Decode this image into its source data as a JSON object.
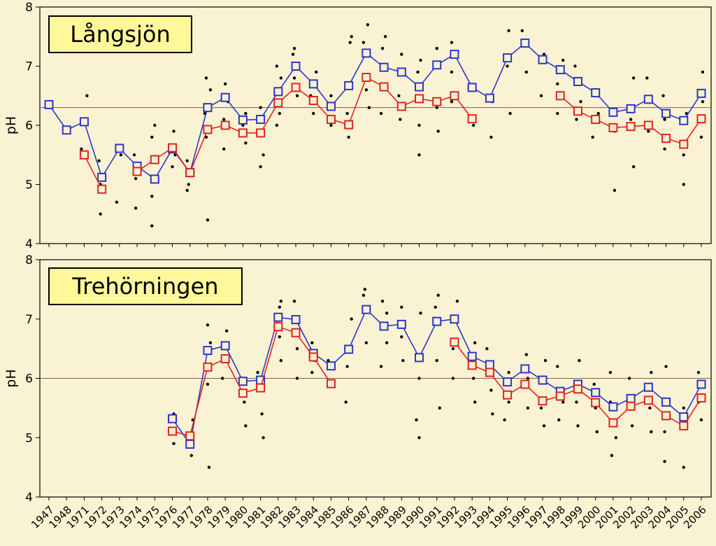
{
  "chart_data": [
    {
      "type": "scatter",
      "title": "Långsjön",
      "ylabel": "pH",
      "ylim": [
        4,
        8
      ],
      "yticks": [
        4,
        5,
        6,
        7,
        8
      ],
      "reference_line": 6.3,
      "categories": [
        "1947",
        "1948",
        "1971",
        "1972",
        "1973",
        "1974",
        "1975",
        "1976",
        "1977",
        "1978",
        "1979",
        "1980",
        "1981",
        "1982",
        "1983",
        "1984",
        "1985",
        "1986",
        "1987",
        "1988",
        "1989",
        "1990",
        "1991",
        "1992",
        "1993",
        "1994",
        "1995",
        "1996",
        "1997",
        "1998",
        "1999",
        "2000",
        "2001",
        "2002",
        "2003",
        "2004",
        "2005",
        "2006"
      ],
      "series": [
        {
          "values": [
            6.35,
            5.92,
            6.06,
            5.12,
            5.61,
            5.31,
            5.09,
            5.6,
            5.2,
            6.3,
            6.47,
            6.09,
            6.1,
            6.57,
            7.0,
            6.7,
            6.32,
            6.67,
            7.22,
            6.98,
            6.9,
            6.65,
            7.02,
            7.2,
            6.64,
            6.46,
            7.14,
            7.39,
            7.11,
            6.94,
            6.74,
            6.55,
            6.22,
            6.28,
            6.44,
            6.2,
            6.08,
            6.54
          ],
          "color": "#2b36c9"
        },
        {
          "values": [
            null,
            null,
            5.5,
            4.92,
            null,
            5.22,
            5.42,
            5.62,
            5.2,
            5.93,
            6.0,
            5.87,
            5.87,
            6.38,
            6.64,
            6.42,
            6.1,
            6.01,
            6.81,
            6.65,
            6.32,
            6.45,
            6.4,
            6.5,
            6.11,
            null,
            null,
            null,
            null,
            6.5,
            6.24,
            6.1,
            5.96,
            5.98,
            6.0,
            5.78,
            5.68,
            6.11
          ],
          "color": "#e0231f"
        }
      ],
      "scatter_points": [
        [
          2,
          6.5
        ],
        [
          2,
          5.6
        ],
        [
          3,
          5.0
        ],
        [
          3,
          4.5
        ],
        [
          3,
          5.4
        ],
        [
          4,
          4.7
        ],
        [
          4,
          5.5
        ],
        [
          5,
          4.6
        ],
        [
          5,
          5.1
        ],
        [
          5,
          5.5
        ],
        [
          6,
          4.3
        ],
        [
          6,
          4.8
        ],
        [
          6,
          5.8
        ],
        [
          6,
          6.0
        ],
        [
          7,
          5.3
        ],
        [
          7,
          5.5
        ],
        [
          7,
          5.9
        ],
        [
          8,
          4.9
        ],
        [
          8,
          5.0
        ],
        [
          8,
          5.4
        ],
        [
          9,
          4.4
        ],
        [
          9,
          5.8
        ],
        [
          9,
          6.2
        ],
        [
          9,
          6.6
        ],
        [
          9,
          6.8
        ],
        [
          10,
          5.6
        ],
        [
          10,
          6.1
        ],
        [
          10,
          6.4
        ],
        [
          10,
          6.7
        ],
        [
          11,
          5.7
        ],
        [
          11,
          6.0
        ],
        [
          11,
          6.2
        ],
        [
          12,
          5.3
        ],
        [
          12,
          5.5
        ],
        [
          12,
          6.3
        ],
        [
          13,
          6.0
        ],
        [
          13,
          6.2
        ],
        [
          13,
          6.8
        ],
        [
          13,
          7.0
        ],
        [
          14,
          6.5
        ],
        [
          14,
          6.8
        ],
        [
          14,
          7.2
        ],
        [
          14,
          7.3
        ],
        [
          15,
          6.2
        ],
        [
          15,
          6.5
        ],
        [
          15,
          6.9
        ],
        [
          16,
          6.0
        ],
        [
          16,
          6.5
        ],
        [
          17,
          5.8
        ],
        [
          17,
          6.2
        ],
        [
          17,
          7.4
        ],
        [
          17,
          7.5
        ],
        [
          18,
          6.3
        ],
        [
          18,
          6.6
        ],
        [
          18,
          7.4
        ],
        [
          18,
          7.7
        ],
        [
          19,
          6.2
        ],
        [
          19,
          6.7
        ],
        [
          19,
          7.3
        ],
        [
          19,
          7.5
        ],
        [
          20,
          6.1
        ],
        [
          20,
          6.5
        ],
        [
          20,
          7.2
        ],
        [
          21,
          5.5
        ],
        [
          21,
          6.0
        ],
        [
          21,
          6.9
        ],
        [
          21,
          7.1
        ],
        [
          22,
          5.9
        ],
        [
          22,
          6.3
        ],
        [
          22,
          7.3
        ],
        [
          23,
          6.4
        ],
        [
          23,
          6.9
        ],
        [
          23,
          7.4
        ],
        [
          24,
          6.0
        ],
        [
          24,
          6.6
        ],
        [
          25,
          5.8
        ],
        [
          25,
          6.4
        ],
        [
          26,
          6.2
        ],
        [
          26,
          7.0
        ],
        [
          26,
          7.6
        ],
        [
          27,
          6.9
        ],
        [
          27,
          7.6
        ],
        [
          28,
          6.5
        ],
        [
          28,
          7.2
        ],
        [
          29,
          6.2
        ],
        [
          29,
          6.7
        ],
        [
          29,
          7.1
        ],
        [
          30,
          6.1
        ],
        [
          30,
          6.4
        ],
        [
          30,
          7.0
        ],
        [
          31,
          5.8
        ],
        [
          31,
          6.2
        ],
        [
          31,
          6.6
        ],
        [
          32,
          4.9
        ],
        [
          32,
          5.9
        ],
        [
          32,
          6.2
        ],
        [
          33,
          5.3
        ],
        [
          33,
          6.1
        ],
        [
          33,
          6.8
        ],
        [
          34,
          5.9
        ],
        [
          34,
          6.4
        ],
        [
          34,
          6.8
        ],
        [
          35,
          5.6
        ],
        [
          35,
          6.1
        ],
        [
          35,
          6.5
        ],
        [
          36,
          5.0
        ],
        [
          36,
          5.5
        ],
        [
          36,
          6.2
        ],
        [
          37,
          5.8
        ],
        [
          37,
          6.4
        ],
        [
          37,
          6.9
        ]
      ]
    },
    {
      "type": "scatter",
      "title": "Trehörningen",
      "ylabel": "pH",
      "ylim": [
        4,
        8
      ],
      "yticks": [
        4,
        5,
        6,
        7,
        8
      ],
      "reference_line": 6.0,
      "categories": [
        "1947",
        "1948",
        "1971",
        "1972",
        "1973",
        "1974",
        "1975",
        "1976",
        "1977",
        "1978",
        "1979",
        "1980",
        "1981",
        "1982",
        "1983",
        "1984",
        "1985",
        "1986",
        "1987",
        "1988",
        "1989",
        "1990",
        "1991",
        "1992",
        "1993",
        "1994",
        "1995",
        "1996",
        "1997",
        "1998",
        "1999",
        "2000",
        "2001",
        "2002",
        "2003",
        "2004",
        "2005",
        "2006"
      ],
      "series": [
        {
          "values": [
            null,
            null,
            null,
            null,
            null,
            null,
            null,
            5.32,
            4.89,
            6.47,
            6.55,
            5.95,
            5.97,
            7.03,
            6.99,
            6.42,
            6.21,
            6.49,
            7.16,
            6.88,
            6.91,
            6.35,
            6.96,
            7.0,
            6.37,
            6.23,
            5.94,
            6.16,
            5.97,
            5.78,
            5.9,
            5.76,
            5.52,
            5.66,
            5.85,
            5.6,
            5.35,
            5.9
          ],
          "color": "#2b36c9"
        },
        {
          "values": [
            null,
            null,
            null,
            null,
            null,
            null,
            null,
            5.11,
            5.03,
            6.19,
            6.33,
            5.75,
            5.84,
            6.87,
            6.77,
            6.36,
            5.91,
            null,
            null,
            null,
            null,
            null,
            null,
            6.61,
            6.22,
            6.1,
            5.72,
            5.9,
            5.62,
            5.7,
            5.82,
            5.59,
            5.25,
            5.53,
            5.63,
            5.37,
            5.2,
            5.67
          ],
          "color": "#e0231f"
        }
      ],
      "scatter_points": [
        [
          7,
          4.9
        ],
        [
          7,
          5.4
        ],
        [
          8,
          4.7
        ],
        [
          8,
          5.3
        ],
        [
          9,
          4.5
        ],
        [
          9,
          5.9
        ],
        [
          9,
          6.6
        ],
        [
          9,
          6.9
        ],
        [
          10,
          6.0
        ],
        [
          10,
          6.5
        ],
        [
          10,
          6.8
        ],
        [
          11,
          5.2
        ],
        [
          11,
          5.6
        ],
        [
          11,
          6.0
        ],
        [
          12,
          5.0
        ],
        [
          12,
          5.4
        ],
        [
          12,
          6.1
        ],
        [
          13,
          6.3
        ],
        [
          13,
          6.7
        ],
        [
          13,
          7.2
        ],
        [
          13,
          7.3
        ],
        [
          14,
          6.0
        ],
        [
          14,
          6.5
        ],
        [
          14,
          7.0
        ],
        [
          14,
          7.3
        ],
        [
          15,
          6.1
        ],
        [
          15,
          6.3
        ],
        [
          15,
          6.6
        ],
        [
          16,
          5.9
        ],
        [
          16,
          6.3
        ],
        [
          17,
          5.6
        ],
        [
          17,
          6.2
        ],
        [
          17,
          7.0
        ],
        [
          18,
          6.6
        ],
        [
          18,
          7.2
        ],
        [
          18,
          7.4
        ],
        [
          18,
          7.5
        ],
        [
          19,
          6.2
        ],
        [
          19,
          6.6
        ],
        [
          19,
          7.1
        ],
        [
          19,
          7.3
        ],
        [
          20,
          6.3
        ],
        [
          20,
          6.7
        ],
        [
          20,
          7.2
        ],
        [
          21,
          5.0
        ],
        [
          21,
          5.3
        ],
        [
          21,
          6.0
        ],
        [
          21,
          7.1
        ],
        [
          22,
          5.5
        ],
        [
          22,
          6.3
        ],
        [
          22,
          7.2
        ],
        [
          22,
          7.4
        ],
        [
          23,
          6.0
        ],
        [
          23,
          6.5
        ],
        [
          23,
          7.3
        ],
        [
          24,
          5.6
        ],
        [
          24,
          6.0
        ],
        [
          24,
          6.6
        ],
        [
          25,
          5.4
        ],
        [
          25,
          5.8
        ],
        [
          25,
          6.5
        ],
        [
          26,
          5.3
        ],
        [
          26,
          5.6
        ],
        [
          26,
          6.1
        ],
        [
          27,
          5.5
        ],
        [
          27,
          6.0
        ],
        [
          27,
          6.4
        ],
        [
          28,
          5.2
        ],
        [
          28,
          5.5
        ],
        [
          28,
          6.3
        ],
        [
          29,
          5.3
        ],
        [
          29,
          5.6
        ],
        [
          29,
          6.2
        ],
        [
          30,
          5.2
        ],
        [
          30,
          5.6
        ],
        [
          30,
          6.3
        ],
        [
          31,
          5.1
        ],
        [
          31,
          5.5
        ],
        [
          31,
          5.9
        ],
        [
          32,
          4.7
        ],
        [
          32,
          5.0
        ],
        [
          32,
          5.6
        ],
        [
          32,
          6.1
        ],
        [
          33,
          5.2
        ],
        [
          33,
          5.5
        ],
        [
          33,
          6.0
        ],
        [
          34,
          5.1
        ],
        [
          34,
          5.5
        ],
        [
          34,
          6.1
        ],
        [
          35,
          4.6
        ],
        [
          35,
          5.1
        ],
        [
          35,
          6.2
        ],
        [
          36,
          4.5
        ],
        [
          36,
          5.2
        ],
        [
          36,
          5.5
        ],
        [
          37,
          5.3
        ],
        [
          37,
          5.6
        ],
        [
          37,
          6.1
        ]
      ]
    }
  ]
}
